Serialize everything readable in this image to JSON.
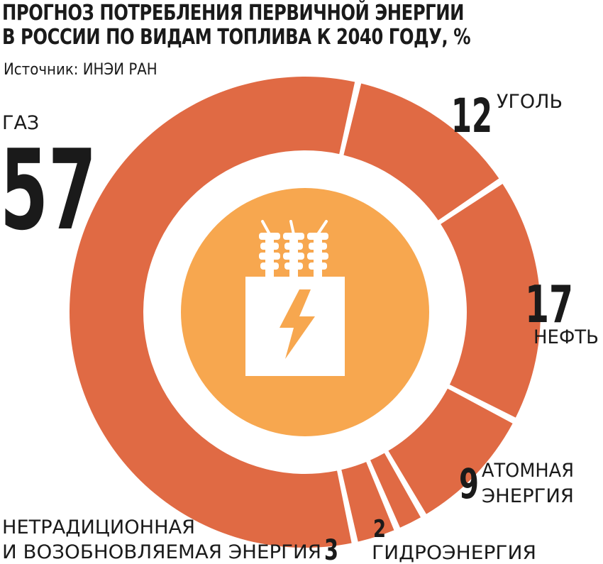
{
  "title_line1": "ПРОГНОЗ ПОТРЕБЛЕНИЯ ПЕРВИЧНОЙ ЭНЕРГИИ",
  "title_line2": "В РОССИИ ПО ВИДАМ ТОПЛИВА К 2040 ГОДУ, %",
  "source": "Источник: ИНЭИ РАН",
  "colors": {
    "ring": "#e06a44",
    "center": "#f7a74f",
    "icon": "#ffffff",
    "text": "#1a1a1a"
  },
  "center_icon": "electric-transformer-icon",
  "chart_data": {
    "type": "pie",
    "donut": true,
    "title": "ПРОГНОЗ ПОТРЕБЛЕНИЯ ПЕРВИЧНОЙ ЭНЕРГИИ В РОССИИ ПО ВИДАМ ТОПЛИВА К 2040 ГОДУ, %",
    "unit": "%",
    "slices": [
      {
        "label": "УГОЛЬ",
        "value": 12,
        "value_text": "12"
      },
      {
        "label": "НЕФТЬ",
        "value": 17,
        "value_text": "17"
      },
      {
        "label": "АТОМНАЯ ЭНЕРГИЯ",
        "label_lines": [
          "АТОМНАЯ",
          "ЭНЕРГИЯ"
        ],
        "value": 9,
        "value_text": "9"
      },
      {
        "label": "ГИДРОЭНЕРГИЯ",
        "value": 2,
        "value_text": "2"
      },
      {
        "label": "НЕТРАДИЦИОННАЯ И ВОЗОБНОВЛЯЕМАЯ ЭНЕРГИЯ",
        "label_lines": [
          "НЕТРАДИЦИОННАЯ",
          "И ВОЗОБНОВЛЯЕМАЯ ЭНЕРГИЯ"
        ],
        "value": 3,
        "value_text": "3"
      },
      {
        "label": "ГАЗ",
        "value": 57,
        "value_text": "57"
      }
    ]
  }
}
